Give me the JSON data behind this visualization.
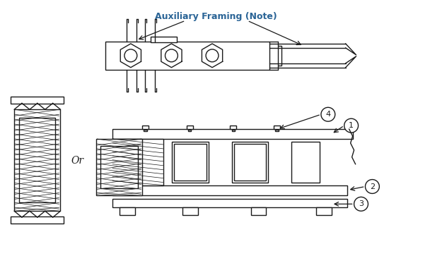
{
  "bg_color": "#ffffff",
  "line_color": "#1a1a1a",
  "label_color": "#2a6496",
  "aux_label": "Auxiliary Framing (Note)",
  "or_text": "Or",
  "fig_width": 6.08,
  "fig_height": 3.9,
  "dpi": 100
}
